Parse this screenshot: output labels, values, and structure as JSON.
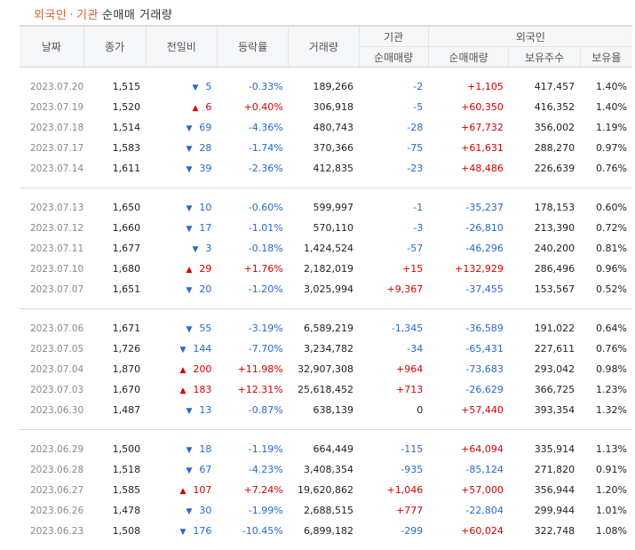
{
  "title": {
    "foreign": "외국인",
    "sep": "·",
    "inst": "기관",
    "rest": "순매매 거래량"
  },
  "headers": {
    "date": "날짜",
    "close": "종가",
    "change": "전일비",
    "rate": "등락률",
    "volume": "거래량",
    "inst_group": "기관",
    "inst_net": "순매매량",
    "foreign_group": "외국인",
    "foreign_net": "순매매량",
    "foreign_hold": "보유주수",
    "foreign_ratio": "보유율"
  },
  "groups": [
    [
      {
        "date": "2023.07.20",
        "close": "1,515",
        "dir": "down",
        "change": "5",
        "rate": "-0.33%",
        "volume": "189,266",
        "inst": "-2",
        "foreign": "+1,105",
        "hold": "417,457",
        "ratio": "1.40%"
      },
      {
        "date": "2023.07.19",
        "close": "1,520",
        "dir": "up",
        "change": "6",
        "rate": "+0.40%",
        "volume": "306,918",
        "inst": "-5",
        "foreign": "+60,350",
        "hold": "416,352",
        "ratio": "1.40%"
      },
      {
        "date": "2023.07.18",
        "close": "1,514",
        "dir": "down",
        "change": "69",
        "rate": "-4.36%",
        "volume": "480,743",
        "inst": "-28",
        "foreign": "+67,732",
        "hold": "356,002",
        "ratio": "1.19%"
      },
      {
        "date": "2023.07.17",
        "close": "1,583",
        "dir": "down",
        "change": "28",
        "rate": "-1.74%",
        "volume": "370,366",
        "inst": "-75",
        "foreign": "+61,631",
        "hold": "288,270",
        "ratio": "0.97%"
      },
      {
        "date": "2023.07.14",
        "close": "1,611",
        "dir": "down",
        "change": "39",
        "rate": "-2.36%",
        "volume": "412,835",
        "inst": "-23",
        "foreign": "+48,486",
        "hold": "226,639",
        "ratio": "0.76%"
      }
    ],
    [
      {
        "date": "2023.07.13",
        "close": "1,650",
        "dir": "down",
        "change": "10",
        "rate": "-0.60%",
        "volume": "599,997",
        "inst": "-1",
        "foreign": "-35,237",
        "hold": "178,153",
        "ratio": "0.60%"
      },
      {
        "date": "2023.07.12",
        "close": "1,660",
        "dir": "down",
        "change": "17",
        "rate": "-1.01%",
        "volume": "570,110",
        "inst": "-3",
        "foreign": "-26,810",
        "hold": "213,390",
        "ratio": "0.72%"
      },
      {
        "date": "2023.07.11",
        "close": "1,677",
        "dir": "down",
        "change": "3",
        "rate": "-0.18%",
        "volume": "1,424,524",
        "inst": "-57",
        "foreign": "-46,296",
        "hold": "240,200",
        "ratio": "0.81%"
      },
      {
        "date": "2023.07.10",
        "close": "1,680",
        "dir": "up",
        "change": "29",
        "rate": "+1.76%",
        "volume": "2,182,019",
        "inst": "+15",
        "foreign": "+132,929",
        "hold": "286,496",
        "ratio": "0.96%"
      },
      {
        "date": "2023.07.07",
        "close": "1,651",
        "dir": "down",
        "change": "20",
        "rate": "-1.20%",
        "volume": "3,025,994",
        "inst": "+9,367",
        "foreign": "-37,455",
        "hold": "153,567",
        "ratio": "0.52%"
      }
    ],
    [
      {
        "date": "2023.07.06",
        "close": "1,671",
        "dir": "down",
        "change": "55",
        "rate": "-3.19%",
        "volume": "6,589,219",
        "inst": "-1,345",
        "foreign": "-36,589",
        "hold": "191,022",
        "ratio": "0.64%"
      },
      {
        "date": "2023.07.05",
        "close": "1,726",
        "dir": "down",
        "change": "144",
        "rate": "-7.70%",
        "volume": "3,234,782",
        "inst": "-34",
        "foreign": "-65,431",
        "hold": "227,611",
        "ratio": "0.76%"
      },
      {
        "date": "2023.07.04",
        "close": "1,870",
        "dir": "up",
        "change": "200",
        "rate": "+11.98%",
        "volume": "32,907,308",
        "inst": "+964",
        "foreign": "-73,683",
        "hold": "293,042",
        "ratio": "0.98%"
      },
      {
        "date": "2023.07.03",
        "close": "1,670",
        "dir": "up",
        "change": "183",
        "rate": "+12.31%",
        "volume": "25,618,452",
        "inst": "+713",
        "foreign": "-26,629",
        "hold": "366,725",
        "ratio": "1.23%"
      },
      {
        "date": "2023.06.30",
        "close": "1,487",
        "dir": "down",
        "change": "13",
        "rate": "-0.87%",
        "volume": "638,139",
        "inst": "0",
        "foreign": "+57,440",
        "hold": "393,354",
        "ratio": "1.32%"
      }
    ],
    [
      {
        "date": "2023.06.29",
        "close": "1,500",
        "dir": "down",
        "change": "18",
        "rate": "-1.19%",
        "volume": "664,449",
        "inst": "-115",
        "foreign": "+64,094",
        "hold": "335,914",
        "ratio": "1.13%"
      },
      {
        "date": "2023.06.28",
        "close": "1,518",
        "dir": "down",
        "change": "67",
        "rate": "-4.23%",
        "volume": "3,408,354",
        "inst": "-935",
        "foreign": "-85,124",
        "hold": "271,820",
        "ratio": "0.91%"
      },
      {
        "date": "2023.06.27",
        "close": "1,585",
        "dir": "up",
        "change": "107",
        "rate": "+7.24%",
        "volume": "19,620,862",
        "inst": "+1,046",
        "foreign": "+57,000",
        "hold": "356,944",
        "ratio": "1.20%"
      },
      {
        "date": "2023.06.26",
        "close": "1,478",
        "dir": "down",
        "change": "30",
        "rate": "-1.99%",
        "volume": "2,688,515",
        "inst": "+777",
        "foreign": "-22,804",
        "hold": "299,944",
        "ratio": "1.01%"
      },
      {
        "date": "2023.06.23",
        "close": "1,508",
        "dir": "down",
        "change": "176",
        "rate": "-10.45%",
        "volume": "6,899,182",
        "inst": "-299",
        "foreign": "+60,024",
        "hold": "322,748",
        "ratio": "1.08%"
      }
    ]
  ],
  "colors": {
    "up": "#d40000",
    "down": "#2668c9",
    "title_accent": "#e05a2e"
  },
  "icons": {
    "up": "triangle-up-icon",
    "down": "triangle-down-icon"
  }
}
